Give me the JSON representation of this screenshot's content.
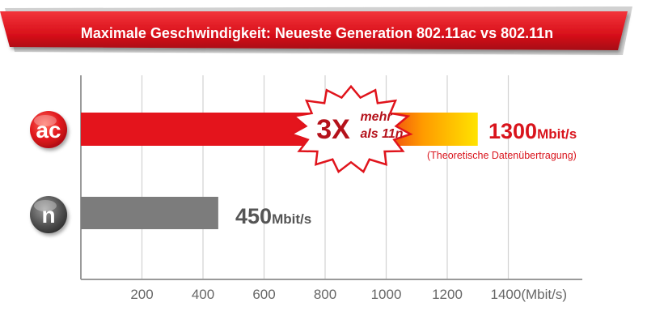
{
  "chart_data": {
    "type": "bar",
    "orientation": "horizontal",
    "title": "Maximale Geschwindigkeit: Neueste Generation 802.11ac vs 802.11n",
    "categories": [
      "ac",
      "n"
    ],
    "values": [
      1300,
      450
    ],
    "value_labels": [
      {
        "number": "1300",
        "unit": "Mbit/s"
      },
      {
        "number": "450",
        "unit": "Mbit/s"
      }
    ],
    "note": "(Theoretische Datenübertragung)",
    "badge": {
      "big": "3X",
      "line1": "mehr",
      "line2": "als 11n"
    },
    "x_ticks": [
      "200",
      "400",
      "600",
      "800",
      "1000",
      "1200",
      "1400(Mbit/s)"
    ],
    "x_tick_values": [
      200,
      400,
      600,
      800,
      1000,
      1200,
      1400
    ],
    "xlim": [
      0,
      1600
    ],
    "grid": true,
    "colors": {
      "banner": "#e0101a",
      "ac_bar": "#e4141c",
      "ac_bar_tip": "#ffe300",
      "n_bar": "#7c7c7c",
      "ac_value": "#d9141c",
      "n_value": "#555555",
      "badge_text": "#b5121b"
    }
  }
}
